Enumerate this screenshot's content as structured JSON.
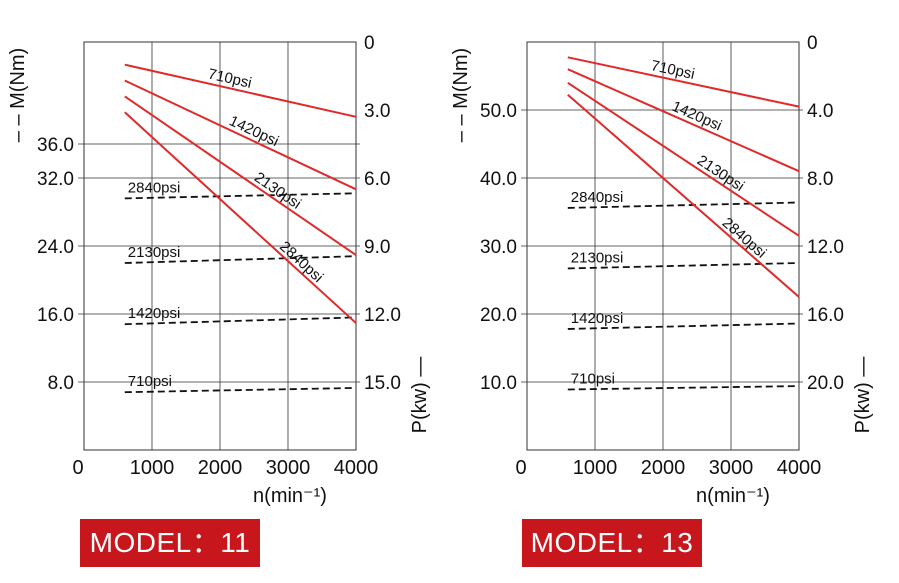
{
  "colors": {
    "power_line": "#e02a2a",
    "torque_line": "#111111",
    "grid": "#333333",
    "badge": "#c8161d"
  },
  "models": [
    {
      "label": "MODEL：11"
    },
    {
      "label": "MODEL：13"
    }
  ],
  "chart_data": [
    {
      "type": "line",
      "title": "",
      "xlabel": "n(min⁻¹)",
      "ylabel_left": "M(Nm)",
      "ylabel_left_prefix": "– –",
      "ylabel_right": "P(kw)",
      "ylabel_right_suffix": "—",
      "x_ticks": [
        0,
        1000,
        2000,
        3000,
        4000
      ],
      "x_tick_labels": [
        "0",
        "1000",
        "2000",
        "3000",
        "4000"
      ],
      "xlim": [
        0,
        4000
      ],
      "y_left_ticks": [
        8.0,
        16.0,
        24.0,
        32.0,
        36.0
      ],
      "y_left_tick_labels": [
        "8.0",
        "16.0",
        "24.0",
        "32.0",
        "36.0"
      ],
      "ylim_left": [
        0,
        48
      ],
      "y_right_ticks": [
        0,
        3.0,
        6.0,
        9.0,
        12.0,
        15.0
      ],
      "y_right_tick_labels": [
        "0",
        "3.0",
        "6.0",
        "9.0",
        "12.0",
        "15.0"
      ],
      "ylim_right": [
        0,
        18
      ],
      "right_axis_inverted": true,
      "grid": true,
      "torque_series": [
        {
          "name": "710psi",
          "x": [
            600,
            4000
          ],
          "y": [
            6.8,
            7.3
          ]
        },
        {
          "name": "1420psi",
          "x": [
            600,
            4000
          ],
          "y": [
            14.8,
            15.6
          ]
        },
        {
          "name": "2130psi",
          "x": [
            600,
            4000
          ],
          "y": [
            22.0,
            22.8
          ]
        },
        {
          "name": "2840psi",
          "x": [
            600,
            4000
          ],
          "y": [
            29.6,
            30.2
          ]
        }
      ],
      "power_series": [
        {
          "name": "710psi",
          "x": [
            600,
            4000
          ],
          "y": [
            1.0,
            3.3
          ]
        },
        {
          "name": "1420psi",
          "x": [
            600,
            4000
          ],
          "y": [
            1.7,
            6.5
          ]
        },
        {
          "name": "2130psi",
          "x": [
            600,
            4000
          ],
          "y": [
            2.4,
            9.4
          ]
        },
        {
          "name": "2840psi",
          "x": [
            600,
            4000
          ],
          "y": [
            3.1,
            12.4
          ]
        }
      ]
    },
    {
      "type": "line",
      "title": "",
      "xlabel": "n(min⁻¹)",
      "ylabel_left": "M(Nm)",
      "ylabel_left_prefix": "– –",
      "ylabel_right": "P(kw)",
      "ylabel_right_suffix": "—",
      "x_ticks": [
        0,
        1000,
        2000,
        3000,
        4000
      ],
      "x_tick_labels": [
        "0",
        "1000",
        "2000",
        "3000",
        "4000"
      ],
      "xlim": [
        0,
        4000
      ],
      "y_left_ticks": [
        10.0,
        20.0,
        30.0,
        40.0,
        50.0
      ],
      "y_left_tick_labels": [
        "10.0",
        "20.0",
        "30.0",
        "40.0",
        "50.0"
      ],
      "ylim_left": [
        0,
        60
      ],
      "y_right_ticks": [
        0,
        4.0,
        8.0,
        12.0,
        16.0,
        20.0
      ],
      "y_right_tick_labels": [
        "0",
        "4.0",
        "8.0",
        "12.0",
        "16.0",
        "20.0"
      ],
      "ylim_right": [
        0,
        24
      ],
      "right_axis_inverted": true,
      "grid": true,
      "torque_series": [
        {
          "name": "710psi",
          "x": [
            600,
            4000
          ],
          "y": [
            8.9,
            9.4
          ]
        },
        {
          "name": "1420psi",
          "x": [
            600,
            4000
          ],
          "y": [
            17.8,
            18.6
          ]
        },
        {
          "name": "2130psi",
          "x": [
            600,
            4000
          ],
          "y": [
            26.7,
            27.5
          ]
        },
        {
          "name": "2840psi",
          "x": [
            600,
            4000
          ],
          "y": [
            35.6,
            36.4
          ]
        }
      ],
      "power_series": [
        {
          "name": "710psi",
          "x": [
            600,
            4000
          ],
          "y": [
            0.9,
            3.8
          ]
        },
        {
          "name": "1420psi",
          "x": [
            600,
            4000
          ],
          "y": [
            1.6,
            7.6
          ]
        },
        {
          "name": "2130psi",
          "x": [
            600,
            4000
          ],
          "y": [
            2.4,
            11.4
          ]
        },
        {
          "name": "2840psi",
          "x": [
            600,
            4000
          ],
          "y": [
            3.1,
            15.0
          ]
        }
      ]
    }
  ]
}
